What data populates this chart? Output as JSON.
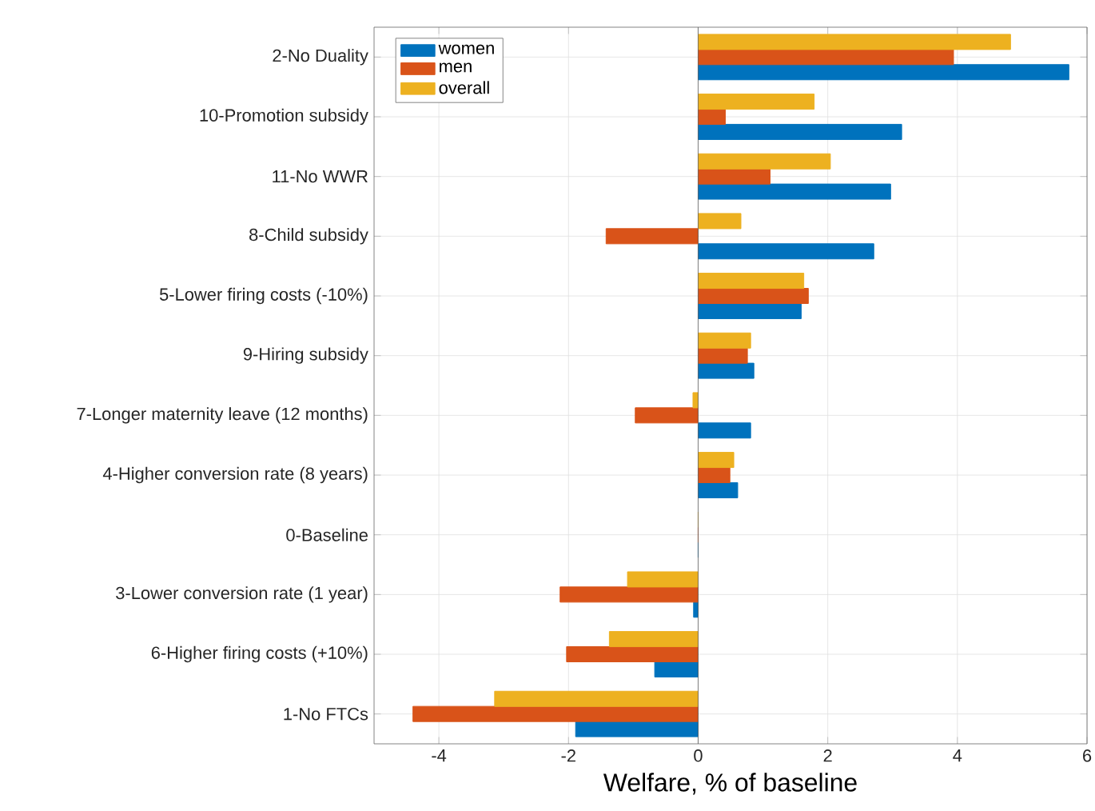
{
  "chart_data": {
    "type": "bar",
    "orientation": "horizontal",
    "xlabel": "Welfare, % of baseline",
    "categories": [
      "2-No Duality",
      "10-Promotion subsidy",
      "11-No WWR",
      "8-Child subsidy",
      "5-Lower firing costs (-10%)",
      "9-Hiring subsidy",
      "7-Longer maternity leave (12 months)",
      "4-Higher conversion rate (8 years)",
      "0-Baseline",
      "3-Lower conversion rate (1 year)",
      "6-Higher firing costs (+10%)",
      "1-No FTCs"
    ],
    "series": [
      {
        "name": "women",
        "color": "#0072bd",
        "values": [
          5.72,
          3.14,
          2.97,
          2.71,
          1.59,
          0.86,
          0.81,
          0.61,
          0,
          -0.07,
          -0.67,
          -1.89
        ]
      },
      {
        "name": "men",
        "color": "#d95319",
        "values": [
          3.94,
          0.42,
          1.11,
          -1.42,
          1.7,
          0.76,
          -0.97,
          0.49,
          0,
          -2.13,
          -2.03,
          -4.4
        ]
      },
      {
        "name": "overall",
        "color": "#edb120",
        "values": [
          4.82,
          1.79,
          2.04,
          0.66,
          1.63,
          0.81,
          -0.08,
          0.55,
          0,
          -1.09,
          -1.37,
          -3.14
        ]
      }
    ],
    "xlim": [
      -5,
      6
    ],
    "xticks": [
      -4,
      -2,
      0,
      2,
      4,
      6
    ],
    "grid": true,
    "legend": "top left"
  }
}
